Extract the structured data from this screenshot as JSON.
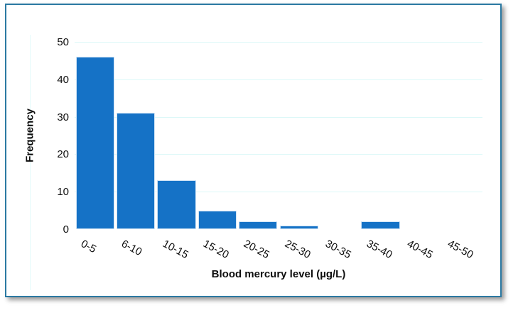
{
  "chart_data": {
    "type": "bar",
    "subtype": "histogram",
    "categories": [
      "0-5",
      "6-10",
      "10-15",
      "15-20",
      "20-25",
      "25-30",
      "30-35",
      "35-40",
      "40-45",
      "45-50"
    ],
    "values": [
      46,
      31,
      13,
      5,
      2,
      1,
      0,
      2,
      0,
      0
    ],
    "title": "",
    "xlabel": "Blood mercury level (µg/L)",
    "ylabel": "Frequency",
    "ylim": [
      0,
      50
    ],
    "ytick_step": 10,
    "yticks": [
      0,
      10,
      20,
      30,
      40,
      50
    ],
    "grid": "horizontal-major",
    "legend": "none",
    "colors": {
      "bar_fill": "#1572c6",
      "bar_edge": "#cfe3f5",
      "gridline": "#dcf8f8",
      "frame_border": "#2b79a2",
      "text": "#0d0d0d",
      "background": "#ffffff"
    }
  }
}
